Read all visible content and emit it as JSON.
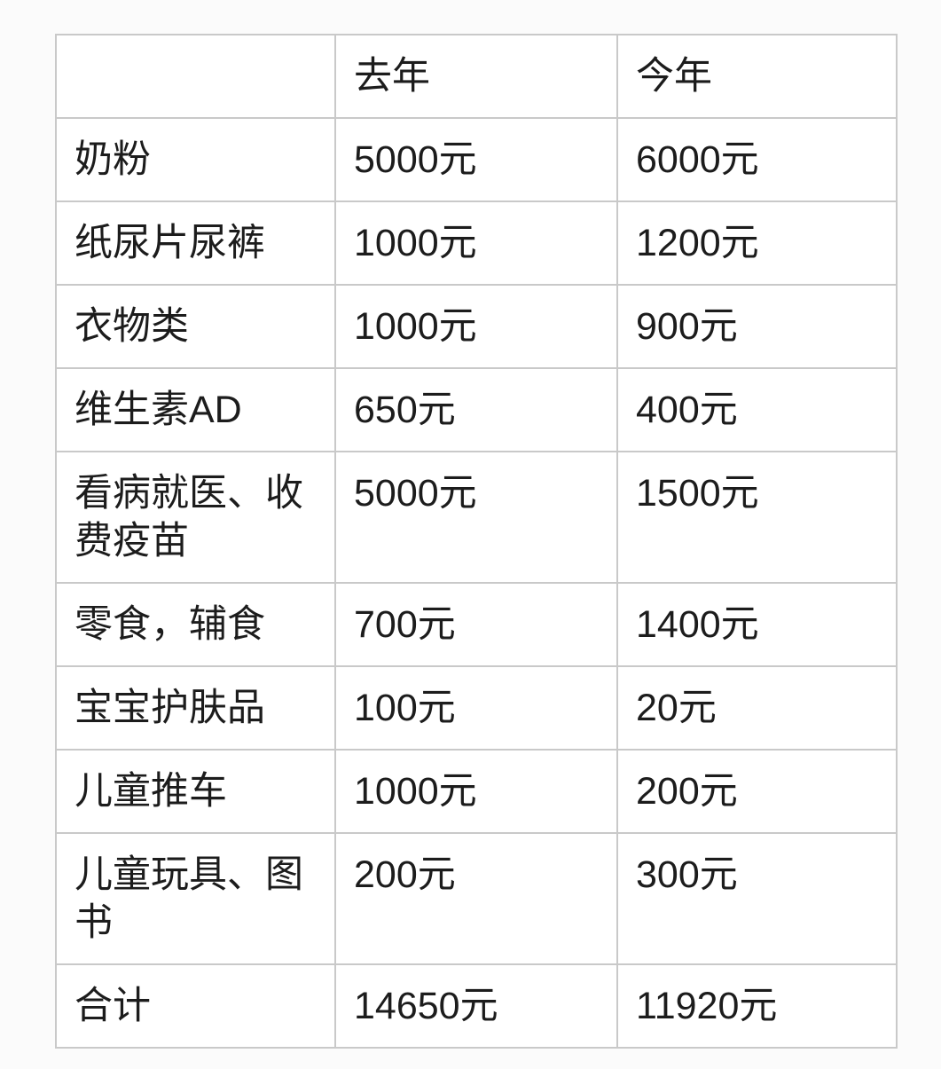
{
  "table": {
    "columns": [
      "",
      "去年",
      "今年"
    ],
    "rows": [
      {
        "label": "奶粉",
        "last_year": "5000元",
        "this_year": "6000元"
      },
      {
        "label": "纸尿片尿裤",
        "last_year": "1000元",
        "this_year": "1200元"
      },
      {
        "label": "衣物类",
        "last_year": "1000元",
        "this_year": "900元"
      },
      {
        "label": "维生素AD",
        "last_year": "650元",
        "this_year": "400元"
      },
      {
        "label": "看病就医、收费疫苗",
        "last_year": "5000元",
        "this_year": "1500元"
      },
      {
        "label": "零食，辅食",
        "last_year": "700元",
        "this_year": "1400元"
      },
      {
        "label": "宝宝护肤品",
        "last_year": "100元",
        "this_year": "20元"
      },
      {
        "label": "儿童推车",
        "last_year": "1000元",
        "this_year": "200元"
      },
      {
        "label": "儿童玩具、图书",
        "last_year": "200元",
        "this_year": "300元"
      },
      {
        "label": "合计",
        "last_year": "14650元",
        "this_year": "11920元"
      }
    ]
  },
  "chart_data": {
    "type": "table",
    "title": "",
    "categories": [
      "奶粉",
      "纸尿片尿裤",
      "衣物类",
      "维生素AD",
      "看病就医、收费疫苗",
      "零食，辅食",
      "宝宝护肤品",
      "儿童推车",
      "儿童玩具、图书",
      "合计"
    ],
    "series": [
      {
        "name": "去年",
        "values": [
          5000,
          1000,
          1000,
          650,
          5000,
          700,
          100,
          1000,
          200,
          14650
        ]
      },
      {
        "name": "今年",
        "values": [
          6000,
          1200,
          900,
          400,
          1500,
          1400,
          20,
          200,
          300,
          11920
        ]
      }
    ],
    "unit": "元"
  },
  "colors": {
    "page_background": "#fbfbfb",
    "cell_background": "#ffffff",
    "border": "#c9c9c9",
    "text": "#1c1c1c"
  }
}
